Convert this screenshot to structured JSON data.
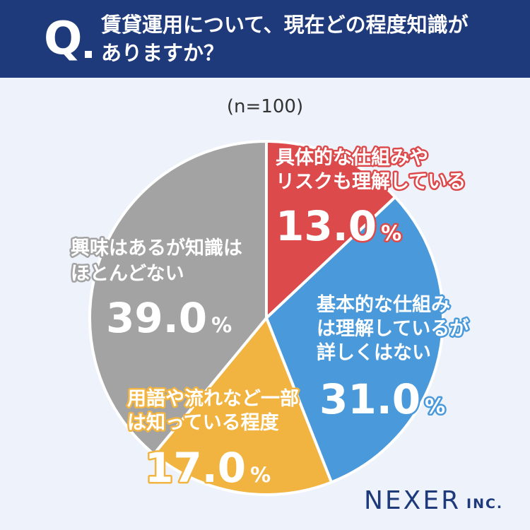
{
  "header": {
    "q_mark": "Q",
    "question_lines": [
      "賃貸運用について、現在どの程度知識が",
      "ありますか？"
    ]
  },
  "sample_size": "(n=100)",
  "logo": {
    "name": "NEXER",
    "suffix": "INC."
  },
  "colors": {
    "header_bg": "#1e3a7b",
    "background": "#edf2fb",
    "red": "#dc4a4c",
    "blue": "#4a9adb",
    "yellow": "#f2b441",
    "gray": "#a3a3a3"
  },
  "chart_data": {
    "type": "pie",
    "start": "12 o'clock",
    "direction": "clockwise",
    "slices": [
      {
        "label_lines": [
          "具体的な仕組みや",
          "リスクも理解している"
        ],
        "value": 13.0,
        "value_text": "13.0",
        "unit": "%",
        "color": "#dc4a4c",
        "text_color": "#ffffff",
        "label_stroke": "#dc4a4c"
      },
      {
        "label_lines": [
          "基本的な仕組み",
          "は理解しているが",
          "詳しくはない"
        ],
        "value": 31.0,
        "value_text": "31.0",
        "unit": "%",
        "color": "#4a9adb",
        "text_color": "#ffffff",
        "label_stroke": "#4a9adb"
      },
      {
        "label_lines": [
          "用語や流れなど一部",
          "は知っている程度"
        ],
        "value": 17.0,
        "value_text": "17.0",
        "unit": "%",
        "color": "#f2b441",
        "text_color": "#ffffff",
        "label_stroke": "#f2b441"
      },
      {
        "label_lines": [
          "興味はあるが知識は",
          "ほとんどない"
        ],
        "value": 39.0,
        "value_text": "39.0",
        "unit": "%",
        "color": "#a3a3a3",
        "text_color": "#ffffff",
        "label_stroke": "#a3a3a3"
      }
    ]
  }
}
